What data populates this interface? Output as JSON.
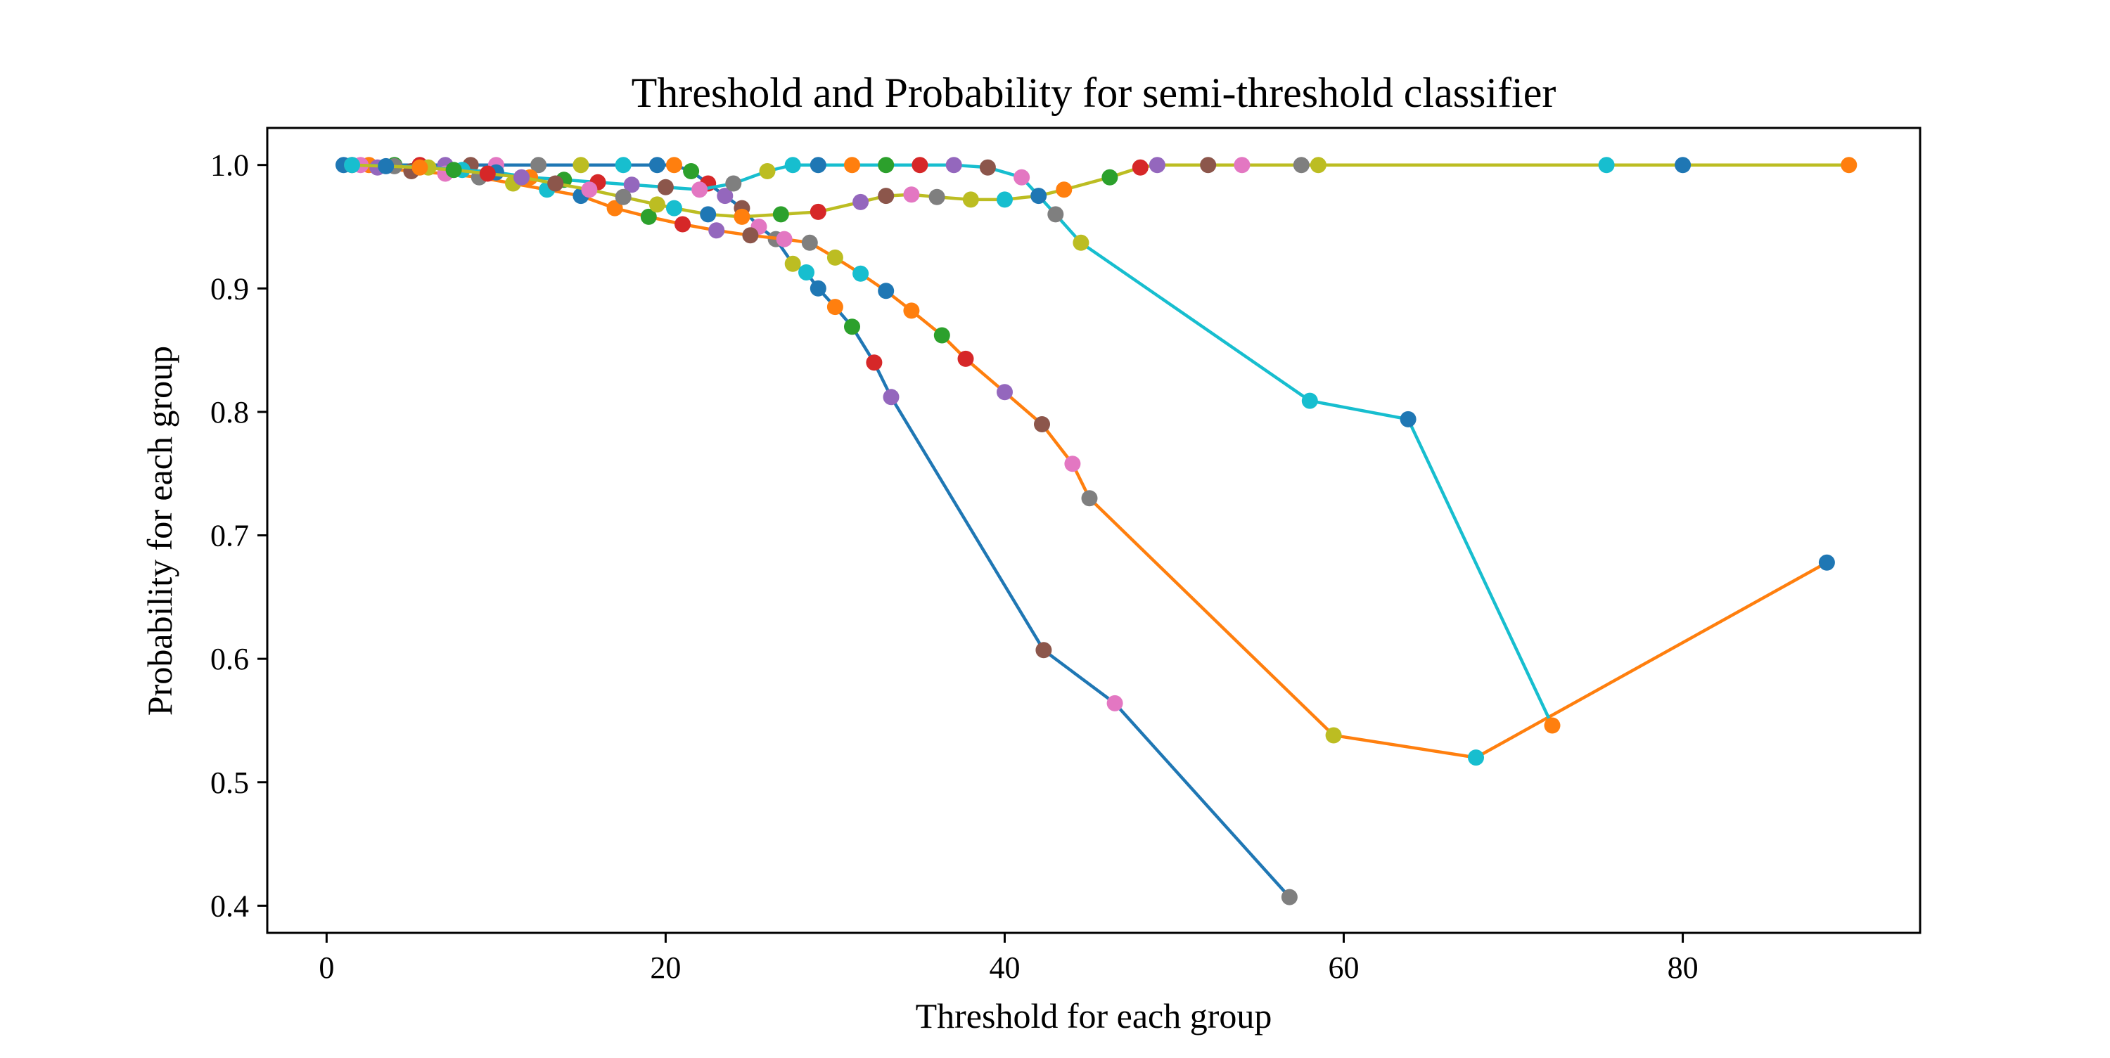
{
  "chart_data": {
    "type": "line",
    "title": "Threshold and Probability for semi-threshold classifier",
    "xlabel": "Threshold for each group",
    "ylabel": "Probability for each group",
    "xlim": [
      -3.5,
      94.0
    ],
    "ylim": [
      0.378,
      1.03
    ],
    "xticks": [
      0,
      20,
      40,
      60,
      80
    ],
    "xtick_labels": [
      "0",
      "20",
      "40",
      "60",
      "80"
    ],
    "yticks": [
      0.4,
      0.5,
      0.6,
      0.7,
      0.8,
      0.9,
      1.0
    ],
    "ytick_labels": [
      "0.4",
      "0.5",
      "0.6",
      "0.7",
      "0.8",
      "0.9",
      "1.0"
    ],
    "grid": false,
    "legend": "none",
    "point_palette": [
      "#1f77b4",
      "#ff7f0e",
      "#2ca02c",
      "#d62728",
      "#9467bd",
      "#8c564b",
      "#e377c2",
      "#7f7f7f",
      "#bcbd22",
      "#17becf"
    ],
    "series": [
      {
        "line_color": "#1f77b4",
        "x": [
          1.0,
          2.5,
          4.0,
          5.5,
          7.0,
          8.5,
          10.0,
          12.5,
          15.0,
          17.5,
          19.5,
          20.5,
          21.5,
          22.5,
          23.5,
          24.5,
          25.5,
          26.5,
          27.5,
          28.3,
          29.0,
          30.0,
          31.0,
          32.3,
          33.3,
          42.3,
          46.5,
          56.8
        ],
        "y": [
          1.0,
          1.0,
          1.0,
          1.0,
          1.0,
          1.0,
          1.0,
          1.0,
          1.0,
          1.0,
          1.0,
          1.0,
          0.995,
          0.985,
          0.975,
          0.965,
          0.95,
          0.94,
          0.92,
          0.913,
          0.9,
          0.885,
          0.869,
          0.84,
          0.812,
          0.607,
          0.564,
          0.407
        ]
      },
      {
        "line_color": "#ff7f0e",
        "x": [
          1.5,
          3.0,
          5.0,
          7.0,
          9.0,
          11.0,
          13.0,
          15.0,
          17.0,
          19.0,
          21.0,
          23.0,
          25.0,
          27.0,
          28.5,
          30.0,
          31.5,
          33.0,
          34.5,
          36.3,
          37.7,
          40.0,
          42.2,
          44.0,
          45.0,
          59.4,
          67.8,
          88.5
        ],
        "y": [
          1.0,
          0.998,
          0.995,
          0.993,
          0.99,
          0.985,
          0.98,
          0.975,
          0.965,
          0.958,
          0.952,
          0.947,
          0.943,
          0.94,
          0.937,
          0.925,
          0.912,
          0.898,
          0.882,
          0.862,
          0.843,
          0.816,
          0.79,
          0.758,
          0.73,
          0.538,
          0.52,
          0.678
        ]
      },
      {
        "line_color": "#17becf",
        "x": [
          2.0,
          4.0,
          6.0,
          8.0,
          10.0,
          12.0,
          14.0,
          16.0,
          18.0,
          20.0,
          22.0,
          24.0,
          26.0,
          27.5,
          29.0,
          31.0,
          33.0,
          35.0,
          37.0,
          39.0,
          41.0,
          43.0,
          44.5,
          58.0,
          63.8,
          72.3
        ],
        "y": [
          1.0,
          0.999,
          0.998,
          0.996,
          0.994,
          0.99,
          0.988,
          0.986,
          0.984,
          0.982,
          0.98,
          0.985,
          0.995,
          1.0,
          1.0,
          1.0,
          1.0,
          1.0,
          1.0,
          0.998,
          0.99,
          0.96,
          0.937,
          0.809,
          0.794,
          0.546
        ]
      },
      {
        "line_color": "#bcbd22",
        "x": [
          1.5,
          3.5,
          5.5,
          7.5,
          9.5,
          11.5,
          13.5,
          15.5,
          17.5,
          19.5,
          20.5,
          22.5,
          24.5,
          26.8,
          29.0,
          31.5,
          33.0,
          34.5,
          36.0,
          38.0,
          40.0,
          42.0,
          43.5,
          46.2,
          48.0,
          49.0,
          52.0,
          54.0,
          57.5,
          58.5,
          75.5,
          80.0,
          89.8
        ],
        "y": [
          1.0,
          0.999,
          0.998,
          0.996,
          0.993,
          0.99,
          0.985,
          0.98,
          0.974,
          0.968,
          0.965,
          0.96,
          0.958,
          0.96,
          0.962,
          0.97,
          0.975,
          0.976,
          0.974,
          0.972,
          0.972,
          0.975,
          0.98,
          0.99,
          0.998,
          1.0,
          1.0,
          1.0,
          1.0,
          1.0,
          1.0,
          1.0,
          1.0
        ]
      }
    ]
  }
}
